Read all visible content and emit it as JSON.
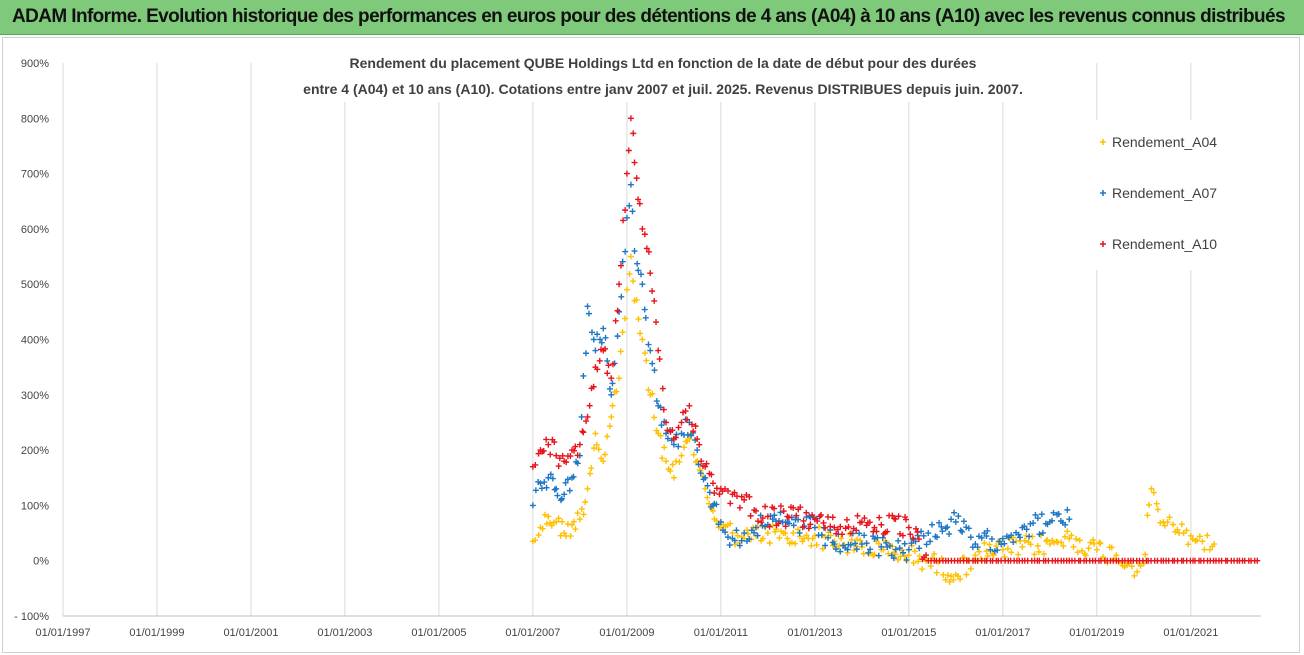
{
  "banner": {
    "text": "ADAM Informe. Evolution historique des performances en euros pour des détentions de 4 ans (A04) à 10 ans (A10) avec les revenus connus distribués"
  },
  "colors": {
    "banner_bg": "#7fc97a",
    "A04": "#ffc000",
    "A07": "#1f77c4",
    "A10": "#e8141c",
    "grid": "#d9d9d9"
  },
  "chart_data": {
    "type": "scatter",
    "title_lines": [
      "Rendement du placement QUBE Holdings Ltd en fonction de la date de début pour des durées",
      "entre 4 (A04) et 10 ans (A10).  Cotations entre janv 2007 et juil. 2025. Revenus DISTRIBUES depuis juin. 2007."
    ],
    "x_ticks": [
      "01/01/1997",
      "01/01/1999",
      "01/01/2001",
      "01/01/2003",
      "01/01/2005",
      "01/01/2007",
      "01/01/2009",
      "01/01/2011",
      "01/01/2013",
      "01/01/2015",
      "01/01/2017",
      "01/01/2019",
      "01/01/2021"
    ],
    "y_ticks": [
      "- 100%",
      "0%",
      "100%",
      "200%",
      "300%",
      "400%",
      "500%",
      "600%",
      "700%",
      "800%",
      "900%"
    ],
    "xlim": [
      "1997-01-01",
      "2022-06-30"
    ],
    "ylim": [
      -100,
      900
    ],
    "grid": "vertical",
    "legend_position": "right",
    "series": [
      {
        "name": "Rendement_A04",
        "color": "#ffc000",
        "points": [
          [
            "2007-01-01",
            35
          ],
          [
            "2007-03-01",
            60
          ],
          [
            "2007-05-01",
            80
          ],
          [
            "2007-07-01",
            70
          ],
          [
            "2007-09-01",
            50
          ],
          [
            "2007-11-01",
            65
          ],
          [
            "2008-01-01",
            75
          ],
          [
            "2008-03-01",
            130
          ],
          [
            "2008-05-01",
            230
          ],
          [
            "2008-07-01",
            180
          ],
          [
            "2008-09-01",
            260
          ],
          [
            "2008-11-01",
            330
          ],
          [
            "2009-01-01",
            490
          ],
          [
            "2009-02-01",
            550
          ],
          [
            "2009-03-01",
            470
          ],
          [
            "2009-05-01",
            400
          ],
          [
            "2009-07-01",
            300
          ],
          [
            "2009-09-01",
            230
          ],
          [
            "2009-11-01",
            180
          ],
          [
            "2010-01-01",
            150
          ],
          [
            "2010-03-01",
            190
          ],
          [
            "2010-05-01",
            220
          ],
          [
            "2010-07-01",
            180
          ],
          [
            "2010-09-01",
            130
          ],
          [
            "2010-11-01",
            90
          ],
          [
            "2011-01-01",
            60
          ],
          [
            "2011-04-01",
            50
          ],
          [
            "2011-07-01",
            40
          ],
          [
            "2011-10-01",
            45
          ],
          [
            "2012-01-01",
            50
          ],
          [
            "2012-06-01",
            40
          ],
          [
            "2013-01-01",
            45
          ],
          [
            "2013-06-01",
            35
          ],
          [
            "2014-01-01",
            25
          ],
          [
            "2014-06-01",
            20
          ],
          [
            "2015-01-01",
            10
          ],
          [
            "2015-06-01",
            0
          ],
          [
            "2016-01-01",
            -25
          ],
          [
            "2016-06-01",
            10
          ],
          [
            "2017-01-01",
            20
          ],
          [
            "2017-06-01",
            25
          ],
          [
            "2018-01-01",
            30
          ],
          [
            "2018-06-01",
            40
          ],
          [
            "2019-01-01",
            20
          ],
          [
            "2019-06-01",
            10
          ],
          [
            "2019-10-01",
            -10
          ],
          [
            "2020-01-01",
            -5
          ],
          [
            "2020-03-01",
            130
          ],
          [
            "2020-06-01",
            70
          ],
          [
            "2020-10-01",
            50
          ],
          [
            "2021-01-01",
            45
          ],
          [
            "2021-04-01",
            35
          ],
          [
            "2021-07-01",
            30
          ]
        ]
      },
      {
        "name": "Rendement_A07",
        "color": "#1f77c4",
        "points": [
          [
            "2007-01-01",
            100
          ],
          [
            "2007-03-01",
            140
          ],
          [
            "2007-05-01",
            150
          ],
          [
            "2007-07-01",
            130
          ],
          [
            "2007-09-01",
            120
          ],
          [
            "2007-11-01",
            150
          ],
          [
            "2008-01-01",
            190
          ],
          [
            "2008-03-01",
            460
          ],
          [
            "2008-05-01",
            380
          ],
          [
            "2008-07-01",
            420
          ],
          [
            "2008-09-01",
            300
          ],
          [
            "2008-11-01",
            450
          ],
          [
            "2009-01-01",
            620
          ],
          [
            "2009-02-01",
            680
          ],
          [
            "2009-03-01",
            560
          ],
          [
            "2009-05-01",
            500
          ],
          [
            "2009-07-01",
            380
          ],
          [
            "2009-09-01",
            280
          ],
          [
            "2009-11-01",
            230
          ],
          [
            "2010-01-01",
            210
          ],
          [
            "2010-03-01",
            230
          ],
          [
            "2010-05-01",
            250
          ],
          [
            "2010-07-01",
            200
          ],
          [
            "2010-09-01",
            150
          ],
          [
            "2010-11-01",
            100
          ],
          [
            "2011-01-01",
            70
          ],
          [
            "2011-04-01",
            40
          ],
          [
            "2011-07-01",
            50
          ],
          [
            "2011-10-01",
            60
          ],
          [
            "2012-01-01",
            65
          ],
          [
            "2012-06-01",
            70
          ],
          [
            "2013-01-01",
            60
          ],
          [
            "2013-06-01",
            30
          ],
          [
            "2014-01-01",
            30
          ],
          [
            "2014-06-01",
            25
          ],
          [
            "2015-01-01",
            20
          ],
          [
            "2015-06-01",
            50
          ],
          [
            "2016-01-01",
            70
          ],
          [
            "2016-06-01",
            30
          ],
          [
            "2017-01-01",
            40
          ],
          [
            "2017-06-01",
            60
          ],
          [
            "2018-01-01",
            70
          ],
          [
            "2018-06-01",
            75
          ]
        ]
      },
      {
        "name": "Rendement_A10",
        "color": "#e8141c",
        "points": [
          [
            "2007-01-01",
            170
          ],
          [
            "2007-03-01",
            200
          ],
          [
            "2007-05-01",
            210
          ],
          [
            "2007-07-01",
            190
          ],
          [
            "2007-09-01",
            180
          ],
          [
            "2007-11-01",
            200
          ],
          [
            "2008-01-01",
            210
          ],
          [
            "2008-03-01",
            260
          ],
          [
            "2008-05-01",
            350
          ],
          [
            "2008-07-01",
            380
          ],
          [
            "2008-09-01",
            330
          ],
          [
            "2008-11-01",
            500
          ],
          [
            "2009-01-01",
            700
          ],
          [
            "2009-02-01",
            800
          ],
          [
            "2009-03-01",
            720
          ],
          [
            "2009-05-01",
            600
          ],
          [
            "2009-07-01",
            520
          ],
          [
            "2009-09-01",
            380
          ],
          [
            "2009-11-01",
            250
          ],
          [
            "2010-01-01",
            220
          ],
          [
            "2010-03-01",
            250
          ],
          [
            "2010-05-01",
            280
          ],
          [
            "2010-07-01",
            220
          ],
          [
            "2010-09-01",
            170
          ],
          [
            "2010-11-01",
            140
          ],
          [
            "2011-01-01",
            130
          ],
          [
            "2011-04-01",
            120
          ],
          [
            "2011-07-01",
            110
          ],
          [
            "2011-10-01",
            90
          ],
          [
            "2012-01-01",
            80
          ],
          [
            "2012-06-01",
            80
          ],
          [
            "2013-01-01",
            75
          ],
          [
            "2013-06-01",
            60
          ],
          [
            "2014-01-01",
            70
          ],
          [
            "2014-06-01",
            65
          ],
          [
            "2015-01-01",
            60
          ],
          [
            "2015-06-01",
            0
          ],
          [
            "2016-06-01",
            0
          ],
          [
            "2017-06-01",
            0
          ],
          [
            "2018-06-01",
            0
          ],
          [
            "2019-06-01",
            0
          ],
          [
            "2020-06-01",
            0
          ],
          [
            "2021-06-01",
            0
          ],
          [
            "2022-06-01",
            0
          ]
        ]
      }
    ]
  }
}
